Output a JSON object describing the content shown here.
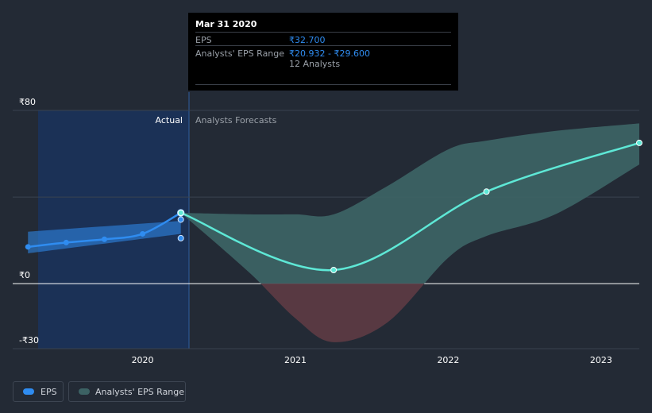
{
  "chart_data": {
    "type": "line",
    "currency": "₹",
    "y_tick_labels": [
      "₹80",
      "₹0",
      "-₹30"
    ],
    "y_ticks": [
      80,
      0,
      -30
    ],
    "ylim": [
      -30,
      80
    ],
    "x_tick_labels": [
      "2020",
      "2021",
      "2022",
      "2023"
    ],
    "x_ticks": [
      2020.0,
      2021.0,
      2022.0,
      2023.0
    ],
    "xlim": [
      2019.15,
      2023.25
    ],
    "actual_label": "Actual",
    "forecast_label": "Analysts Forecasts",
    "actual_end": 2020.25,
    "series": [
      {
        "name": "EPS",
        "color": "#2f8cf0",
        "x": [
          2019.25,
          2019.5,
          2019.75,
          2020.0,
          2020.25
        ],
        "values": [
          17,
          19,
          20.5,
          23,
          32.7
        ]
      },
      {
        "name": "EPS forecast",
        "color": "#5ee8d6",
        "x": [
          2020.25,
          2021.25,
          2022.25,
          2023.25
        ],
        "values": [
          32.7,
          6.3,
          42.5,
          65
        ]
      }
    ],
    "actual_range": {
      "x": [
        2019.25,
        2020.25
      ],
      "low": [
        14,
        23
      ],
      "high": [
        24,
        29
      ]
    },
    "forecast_range": {
      "x": [
        2020.25,
        2020.7,
        2021.0,
        2021.25,
        2021.6,
        2022.0,
        2022.25,
        2022.7,
        2023.25
      ],
      "low": [
        32.7,
        5,
        -16,
        -27,
        -18,
        12,
        22,
        32,
        55
      ],
      "high": [
        32.7,
        32,
        32,
        32,
        45,
        62,
        66,
        70.5,
        74
      ]
    },
    "extra_markers": [
      {
        "x": 2020.25,
        "value": 29.6
      },
      {
        "x": 2020.25,
        "value": 21
      }
    ]
  },
  "tooltip": {
    "date": "Mar 31 2020",
    "rows": [
      {
        "key": "EPS",
        "value": "₹32.700"
      },
      {
        "key": "Analysts' EPS Range",
        "value": "₹20.932 - ₹29.600"
      }
    ],
    "analysts": "12 Analysts"
  },
  "legend": {
    "eps_label": "EPS",
    "range_label": "Analysts' EPS Range"
  },
  "colors": {
    "background": "#232a35",
    "actual_band": "#1b3156",
    "eps_line": "#2f8cf0",
    "forecast_line": "#5ee8d6",
    "range_positive": "#3c6264",
    "range_negative": "#5c3a43"
  }
}
